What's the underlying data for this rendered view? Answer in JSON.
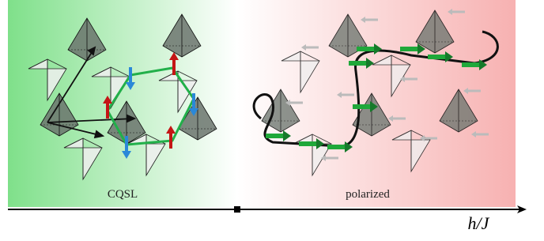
{
  "labels": {
    "left_phase": "CQSL",
    "right_phase": "polarized",
    "axis": "h/J"
  }
}
